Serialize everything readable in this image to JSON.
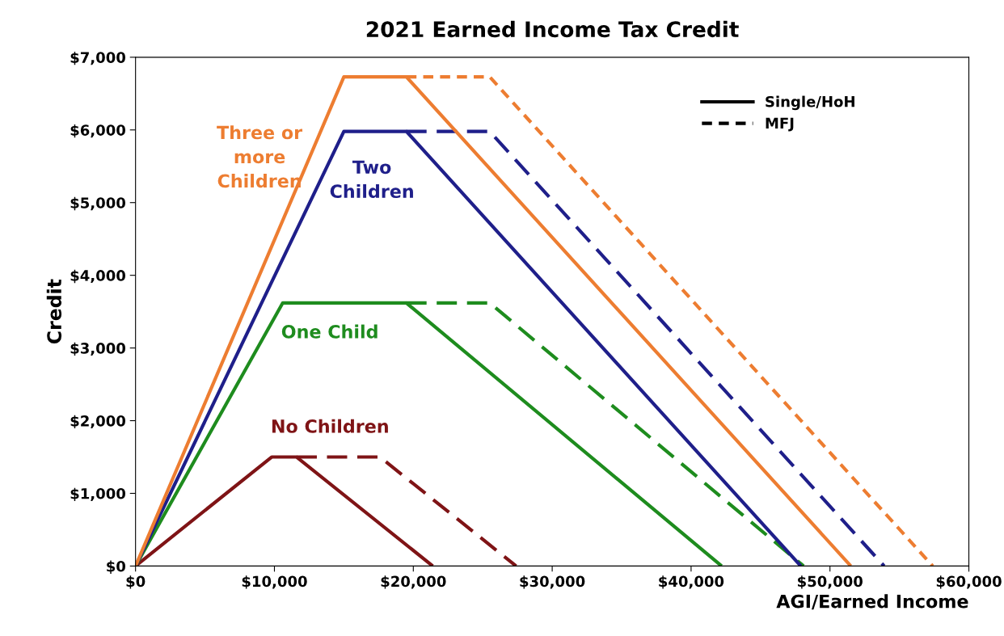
{
  "chart_data": {
    "type": "line",
    "title": "2021 Earned Income Tax Credit",
    "xlabel": "AGI/Earned Income",
    "ylabel": "Credit",
    "xlim": [
      0,
      60000
    ],
    "ylim": [
      0,
      7000
    ],
    "xticks": [
      {
        "value": 0,
        "label": "$0"
      },
      {
        "value": 10000,
        "label": "$10,000"
      },
      {
        "value": 20000,
        "label": "$20,000"
      },
      {
        "value": 30000,
        "label": "$30,000"
      },
      {
        "value": 40000,
        "label": "$40,000"
      },
      {
        "value": 50000,
        "label": "$50,000"
      },
      {
        "value": 60000,
        "label": "$60,000"
      }
    ],
    "yticks": [
      {
        "value": 0,
        "label": "$0"
      },
      {
        "value": 1000,
        "label": "$1,000"
      },
      {
        "value": 2000,
        "label": "$2,000"
      },
      {
        "value": 3000,
        "label": "$3,000"
      },
      {
        "value": 4000,
        "label": "$4,000"
      },
      {
        "value": 5000,
        "label": "$5,000"
      },
      {
        "value": 6000,
        "label": "$6,000"
      },
      {
        "value": 7000,
        "label": "$7,000"
      }
    ],
    "grid": false,
    "marker": "none",
    "annotations": [
      "Single/HoH",
      "MFJ",
      {
        "text": "No Children",
        "x": 9800,
        "y": 1500
      },
      {
        "text": "One Child",
        "x": 10600,
        "y": 3620
      },
      {
        "text": "Two Children",
        "x": 15000,
        "y": 5980
      },
      {
        "text": "Three or more Children",
        "x": 12500,
        "y": 5610
      }
    ],
    "series": [
      {
        "color": "#7f1416",
        "line_style": "dashed",
        "x": [
          11600,
          17600,
          27400
        ],
        "values": [
          1500,
          1500,
          0
        ]
      },
      {
        "color": "#1e8c1e",
        "line_style": "dashed",
        "x": [
          19500,
          25500,
          48100
        ],
        "values": [
          3620,
          3620,
          0
        ]
      },
      {
        "color": "#1f1f8a",
        "line_style": "dashed",
        "x": [
          19500,
          25500,
          53900
        ],
        "values": [
          5980,
          5980,
          0
        ]
      },
      {
        "color": "#ed7d31",
        "line_style": "dotted",
        "x": [
          19500,
          25500,
          57400
        ],
        "values": [
          6730,
          6730,
          0
        ]
      },
      {
        "color": "#7f1416",
        "line_style": "solid",
        "x": [
          0,
          9800,
          11600,
          21400
        ],
        "values": [
          0,
          1500,
          1500,
          0
        ]
      },
      {
        "color": "#1e8c1e",
        "line_style": "solid",
        "x": [
          0,
          10600,
          19500,
          42200
        ],
        "values": [
          0,
          3620,
          3620,
          0
        ]
      },
      {
        "color": "#1f1f8a",
        "line_style": "solid",
        "x": [
          0,
          15000,
          19500,
          47900
        ],
        "values": [
          0,
          5980,
          5980,
          0
        ]
      },
      {
        "color": "#ed7d31",
        "line_style": "solid",
        "x": [
          0,
          15000,
          19500,
          51500
        ],
        "values": [
          0,
          6730,
          6730,
          0
        ]
      }
    ]
  }
}
